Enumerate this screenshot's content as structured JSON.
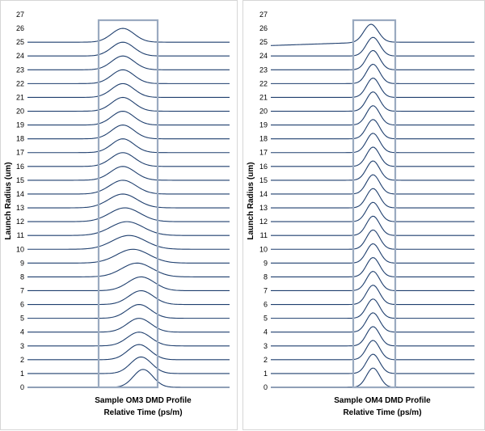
{
  "chart_data": [
    {
      "type": "line",
      "title": "Sample OM3 DMD Profile",
      "xlabel": "Relative Time (ps/m)",
      "ylabel": "Launch Radius (um)",
      "ylim": [
        0,
        27
      ],
      "y_ticks": [
        "0",
        "1",
        "2",
        "3",
        "4",
        "5",
        "6",
        "7",
        "8",
        "9",
        "10",
        "11",
        "12",
        "13",
        "14",
        "15",
        "16",
        "17",
        "18",
        "19",
        "20",
        "21",
        "22",
        "23",
        "24",
        "25",
        "26",
        "27"
      ],
      "grid": false,
      "highlight_window": "rectangular window around pulse region",
      "line_color": "#1f3f6e",
      "window_color": "#9aaac0",
      "x_axis_ticks_shown": false,
      "series": [
        {
          "radius": 0,
          "pulse_center": 0.57,
          "pulse_width": 0.048,
          "pulse_height": 1.3,
          "baseline_tilt": 0
        },
        {
          "radius": 1,
          "pulse_center": 0.56,
          "pulse_width": 0.052,
          "pulse_height": 1.2,
          "baseline_tilt": 0
        },
        {
          "radius": 2,
          "pulse_center": 0.55,
          "pulse_width": 0.055,
          "pulse_height": 1.1,
          "baseline_tilt": 0
        },
        {
          "radius": 3,
          "pulse_center": 0.55,
          "pulse_width": 0.058,
          "pulse_height": 1.0,
          "baseline_tilt": 0
        },
        {
          "radius": 4,
          "pulse_center": 0.55,
          "pulse_width": 0.058,
          "pulse_height": 1.0,
          "baseline_tilt": 0
        },
        {
          "radius": 5,
          "pulse_center": 0.55,
          "pulse_width": 0.058,
          "pulse_height": 1.0,
          "baseline_tilt": 0
        },
        {
          "radius": 6,
          "pulse_center": 0.56,
          "pulse_width": 0.06,
          "pulse_height": 1.0,
          "baseline_tilt": 0
        },
        {
          "radius": 7,
          "pulse_center": 0.56,
          "pulse_width": 0.065,
          "pulse_height": 1.0,
          "baseline_tilt": 0
        },
        {
          "radius": 8,
          "pulse_center": 0.54,
          "pulse_width": 0.075,
          "pulse_height": 1.0,
          "baseline_tilt": 0
        },
        {
          "radius": 9,
          "pulse_center": 0.52,
          "pulse_width": 0.08,
          "pulse_height": 1.0,
          "baseline_tilt": 0
        },
        {
          "radius": 10,
          "pulse_center": 0.5,
          "pulse_width": 0.082,
          "pulse_height": 1.0,
          "baseline_tilt": 0
        },
        {
          "radius": 11,
          "pulse_center": 0.49,
          "pulse_width": 0.08,
          "pulse_height": 1.0,
          "baseline_tilt": 0
        },
        {
          "radius": 12,
          "pulse_center": 0.48,
          "pulse_width": 0.075,
          "pulse_height": 1.0,
          "baseline_tilt": 0
        },
        {
          "radius": 13,
          "pulse_center": 0.47,
          "pulse_width": 0.07,
          "pulse_height": 1.0,
          "baseline_tilt": 0
        },
        {
          "radius": 14,
          "pulse_center": 0.47,
          "pulse_width": 0.065,
          "pulse_height": 1.0,
          "baseline_tilt": 0
        },
        {
          "radius": 15,
          "pulse_center": 0.47,
          "pulse_width": 0.06,
          "pulse_height": 1.0,
          "baseline_tilt": 0
        },
        {
          "radius": 16,
          "pulse_center": 0.47,
          "pulse_width": 0.058,
          "pulse_height": 1.0,
          "baseline_tilt": 0
        },
        {
          "radius": 17,
          "pulse_center": 0.47,
          "pulse_width": 0.055,
          "pulse_height": 1.0,
          "baseline_tilt": 0
        },
        {
          "radius": 18,
          "pulse_center": 0.47,
          "pulse_width": 0.055,
          "pulse_height": 1.0,
          "baseline_tilt": 0
        },
        {
          "radius": 19,
          "pulse_center": 0.47,
          "pulse_width": 0.055,
          "pulse_height": 1.0,
          "baseline_tilt": 0
        },
        {
          "radius": 20,
          "pulse_center": 0.47,
          "pulse_width": 0.055,
          "pulse_height": 1.0,
          "baseline_tilt": 0
        },
        {
          "radius": 21,
          "pulse_center": 0.47,
          "pulse_width": 0.055,
          "pulse_height": 1.0,
          "baseline_tilt": 0
        },
        {
          "radius": 22,
          "pulse_center": 0.47,
          "pulse_width": 0.055,
          "pulse_height": 1.0,
          "baseline_tilt": 0
        },
        {
          "radius": 23,
          "pulse_center": 0.47,
          "pulse_width": 0.055,
          "pulse_height": 1.0,
          "baseline_tilt": 0
        },
        {
          "radius": 24,
          "pulse_center": 0.47,
          "pulse_width": 0.055,
          "pulse_height": 1.0,
          "baseline_tilt": 0
        },
        {
          "radius": 25,
          "pulse_center": 0.47,
          "pulse_width": 0.055,
          "pulse_height": 1.0,
          "baseline_tilt": 0
        }
      ]
    },
    {
      "type": "line",
      "title": "Sample OM4 DMD Profile",
      "xlabel": "Relative Time (ps/m)",
      "ylabel": "Launch Radius (um)",
      "ylim": [
        0,
        27
      ],
      "y_ticks": [
        "0",
        "1",
        "2",
        "3",
        "4",
        "5",
        "6",
        "7",
        "8",
        "9",
        "10",
        "11",
        "12",
        "13",
        "14",
        "15",
        "16",
        "17",
        "18",
        "19",
        "20",
        "21",
        "22",
        "23",
        "24",
        "25",
        "26",
        "27"
      ],
      "grid": false,
      "highlight_window": "rectangular window around pulse region",
      "line_color": "#1f3f6e",
      "window_color": "#9aaac0",
      "x_axis_ticks_shown": false,
      "series": [
        {
          "radius": 0,
          "pulse_center": 0.5,
          "pulse_width": 0.032,
          "pulse_height": 1.4,
          "baseline_tilt": 0
        },
        {
          "radius": 1,
          "pulse_center": 0.5,
          "pulse_width": 0.032,
          "pulse_height": 1.4,
          "baseline_tilt": 0
        },
        {
          "radius": 2,
          "pulse_center": 0.5,
          "pulse_width": 0.032,
          "pulse_height": 1.4,
          "baseline_tilt": 0
        },
        {
          "radius": 3,
          "pulse_center": 0.5,
          "pulse_width": 0.032,
          "pulse_height": 1.4,
          "baseline_tilt": 0
        },
        {
          "radius": 4,
          "pulse_center": 0.5,
          "pulse_width": 0.032,
          "pulse_height": 1.4,
          "baseline_tilt": 0
        },
        {
          "radius": 5,
          "pulse_center": 0.5,
          "pulse_width": 0.032,
          "pulse_height": 1.4,
          "baseline_tilt": 0
        },
        {
          "radius": 6,
          "pulse_center": 0.5,
          "pulse_width": 0.032,
          "pulse_height": 1.4,
          "baseline_tilt": 0
        },
        {
          "radius": 7,
          "pulse_center": 0.5,
          "pulse_width": 0.032,
          "pulse_height": 1.4,
          "baseline_tilt": 0
        },
        {
          "radius": 8,
          "pulse_center": 0.5,
          "pulse_width": 0.032,
          "pulse_height": 1.4,
          "baseline_tilt": 0
        },
        {
          "radius": 9,
          "pulse_center": 0.5,
          "pulse_width": 0.032,
          "pulse_height": 1.4,
          "baseline_tilt": 0
        },
        {
          "radius": 10,
          "pulse_center": 0.5,
          "pulse_width": 0.032,
          "pulse_height": 1.4,
          "baseline_tilt": 0
        },
        {
          "radius": 11,
          "pulse_center": 0.5,
          "pulse_width": 0.032,
          "pulse_height": 1.4,
          "baseline_tilt": 0
        },
        {
          "radius": 12,
          "pulse_center": 0.5,
          "pulse_width": 0.032,
          "pulse_height": 1.4,
          "baseline_tilt": 0
        },
        {
          "radius": 13,
          "pulse_center": 0.5,
          "pulse_width": 0.032,
          "pulse_height": 1.4,
          "baseline_tilt": 0
        },
        {
          "radius": 14,
          "pulse_center": 0.5,
          "pulse_width": 0.032,
          "pulse_height": 1.4,
          "baseline_tilt": 0
        },
        {
          "radius": 15,
          "pulse_center": 0.5,
          "pulse_width": 0.032,
          "pulse_height": 1.4,
          "baseline_tilt": 0
        },
        {
          "radius": 16,
          "pulse_center": 0.5,
          "pulse_width": 0.032,
          "pulse_height": 1.4,
          "baseline_tilt": 0
        },
        {
          "radius": 17,
          "pulse_center": 0.5,
          "pulse_width": 0.032,
          "pulse_height": 1.4,
          "baseline_tilt": 0
        },
        {
          "radius": 18,
          "pulse_center": 0.5,
          "pulse_width": 0.032,
          "pulse_height": 1.4,
          "baseline_tilt": 0
        },
        {
          "radius": 19,
          "pulse_center": 0.5,
          "pulse_width": 0.032,
          "pulse_height": 1.4,
          "baseline_tilt": 0
        },
        {
          "radius": 20,
          "pulse_center": 0.5,
          "pulse_width": 0.032,
          "pulse_height": 1.4,
          "baseline_tilt": 0
        },
        {
          "radius": 21,
          "pulse_center": 0.5,
          "pulse_width": 0.032,
          "pulse_height": 1.4,
          "baseline_tilt": 0
        },
        {
          "radius": 22,
          "pulse_center": 0.5,
          "pulse_width": 0.032,
          "pulse_height": 1.4,
          "baseline_tilt": 0
        },
        {
          "radius": 23,
          "pulse_center": 0.5,
          "pulse_width": 0.032,
          "pulse_height": 1.4,
          "baseline_tilt": 0
        },
        {
          "radius": 24,
          "pulse_center": 0.5,
          "pulse_width": 0.033,
          "pulse_height": 1.35,
          "baseline_tilt": 0
        },
        {
          "radius": 25,
          "pulse_center": 0.49,
          "pulse_width": 0.035,
          "pulse_height": 1.3,
          "baseline_tilt": 0.25
        }
      ]
    }
  ]
}
